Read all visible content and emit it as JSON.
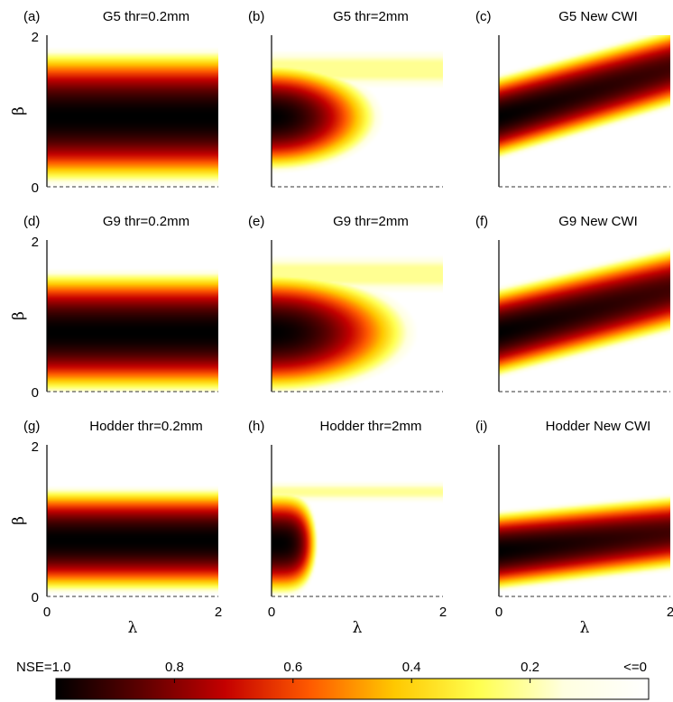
{
  "figure": {
    "colorbar": {
      "labels": [
        "NSE=1.0",
        "0.8",
        "0.6",
        "0.4",
        "0.2",
        "<=0"
      ],
      "values": [
        1.0,
        0.8,
        0.6,
        0.4,
        0.2,
        0.0
      ],
      "colormap": [
        "#000000",
        "#5c0000",
        "#c40000",
        "#ff5a00",
        "#ffc800",
        "#ffff50",
        "#ffffe0",
        "#ffffff"
      ]
    },
    "axis_symbols": {
      "x": "λ",
      "y": "β"
    }
  },
  "chart_data": [
    {
      "type": "heatmap",
      "panel": "(a)",
      "title": "G5 thr=0.2mm",
      "xlabel": "",
      "ylabel": "β",
      "xlim": [
        0,
        2
      ],
      "ylim": [
        0,
        2
      ],
      "xticks": [],
      "yticks": [
        "0",
        "2"
      ],
      "pattern": "horizontal-band",
      "band_center": 0.92,
      "band_halfwidth": 0.92,
      "lambda_growth": 0.0
    },
    {
      "type": "heatmap",
      "panel": "(b)",
      "title": "G5 thr=2mm",
      "xlabel": "",
      "ylabel": "",
      "xlim": [
        0,
        2
      ],
      "ylim": [
        0,
        2
      ],
      "xticks": [],
      "yticks": [],
      "pattern": "lambda-decay",
      "band_center": 0.92,
      "band_halfwidth": 0.75,
      "decay": 1.05
    },
    {
      "type": "heatmap",
      "panel": "(c)",
      "title": "G5 New CWI",
      "xlabel": "",
      "ylabel": "",
      "xlim": [
        0,
        2
      ],
      "ylim": [
        0,
        2
      ],
      "xticks": [],
      "yticks": [],
      "pattern": "sloped-band",
      "band_center": 0.92,
      "band_halfwidth": 0.58,
      "lambda_growth": 0.32
    },
    {
      "type": "heatmap",
      "panel": "(d)",
      "title": "G9 thr=0.2mm",
      "xlabel": "",
      "ylabel": "β",
      "xlim": [
        0,
        2
      ],
      "ylim": [
        0,
        2
      ],
      "xticks": [],
      "yticks": [
        "0",
        "2"
      ],
      "pattern": "horizontal-band",
      "band_center": 0.78,
      "band_halfwidth": 0.84,
      "lambda_growth": 0.0
    },
    {
      "type": "heatmap",
      "panel": "(e)",
      "title": "G9 thr=2mm",
      "xlabel": "",
      "ylabel": "",
      "xlim": [
        0,
        2
      ],
      "ylim": [
        0,
        2
      ],
      "xticks": [],
      "yticks": [],
      "pattern": "lambda-decay",
      "band_center": 0.78,
      "band_halfwidth": 0.84,
      "decay": 0.62
    },
    {
      "type": "heatmap",
      "panel": "(f)",
      "title": "G9  New CWI",
      "xlabel": "",
      "ylabel": "",
      "xlim": [
        0,
        2
      ],
      "ylim": [
        0,
        2
      ],
      "xticks": [],
      "yticks": [],
      "pattern": "sloped-band",
      "band_center": 0.78,
      "band_halfwidth": 0.62,
      "lambda_growth": 0.28
    },
    {
      "type": "heatmap",
      "panel": "(g)",
      "title": "Hodder thr=0.2mm",
      "xlabel": "λ",
      "ylabel": "β",
      "xlim": [
        0,
        2
      ],
      "ylim": [
        0,
        2
      ],
      "xticks": [
        "0",
        "2"
      ],
      "yticks": [
        "0",
        "2"
      ],
      "pattern": "horizontal-band",
      "band_center": 0.74,
      "band_halfwidth": 0.72,
      "lambda_growth": 0.0
    },
    {
      "type": "heatmap",
      "panel": "(h)",
      "title": "Hodder thr=2mm",
      "xlabel": "λ",
      "ylabel": "",
      "xlim": [
        0,
        2
      ],
      "ylim": [
        0,
        2
      ],
      "xticks": [
        "0",
        "2"
      ],
      "yticks": [],
      "pattern": "lambda-cutoff",
      "band_center": 0.7,
      "band_halfwidth": 0.72,
      "cutoff": 0.55
    },
    {
      "type": "heatmap",
      "panel": "(i)",
      "title": "Hodder  New CWI",
      "xlabel": "λ",
      "ylabel": "",
      "xlim": [
        0,
        2
      ],
      "ylim": [
        0,
        2
      ],
      "xticks": [
        "0",
        "2"
      ],
      "yticks": [],
      "pattern": "sloped-band",
      "band_center": 0.6,
      "band_halfwidth": 0.55,
      "lambda_growth": 0.12
    }
  ]
}
